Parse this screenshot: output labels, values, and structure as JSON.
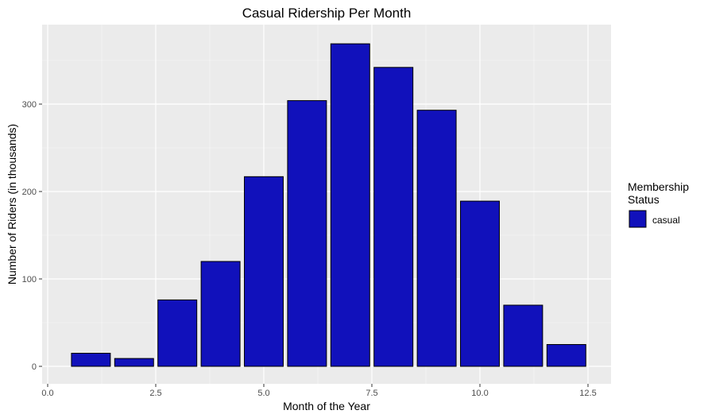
{
  "chart_data": {
    "type": "bar",
    "title": "Casual Ridership Per Month",
    "xlabel": "Month of the Year",
    "ylabel": "Number of Riders (in thousands)",
    "x": [
      1,
      2,
      3,
      4,
      5,
      6,
      7,
      8,
      9,
      10,
      11,
      12
    ],
    "series": [
      {
        "name": "casual",
        "values": [
          15,
          9,
          76,
          120,
          217,
          304,
          369,
          342,
          293,
          189,
          70,
          25
        ]
      }
    ],
    "xlim": [
      0,
      12.5
    ],
    "ylim": [
      0,
      369
    ],
    "xticks": [
      0,
      2.5,
      5,
      7.5,
      10,
      12.5
    ],
    "xtick_labels": [
      "0.0",
      "2.5",
      "5.0",
      "7.5",
      "10.0",
      "12.5"
    ],
    "yticks": [
      0,
      100,
      200,
      300
    ],
    "ytick_labels": [
      "0",
      "100",
      "200",
      "300"
    ],
    "grid": true,
    "legend": {
      "title_lines": [
        "Membership",
        "Status"
      ],
      "placement": "right"
    },
    "colors": {
      "bar_fill": "#1111bb",
      "bar_stroke": "#000000",
      "panel_bg": "#ebebeb",
      "grid": "#ffffff"
    }
  }
}
